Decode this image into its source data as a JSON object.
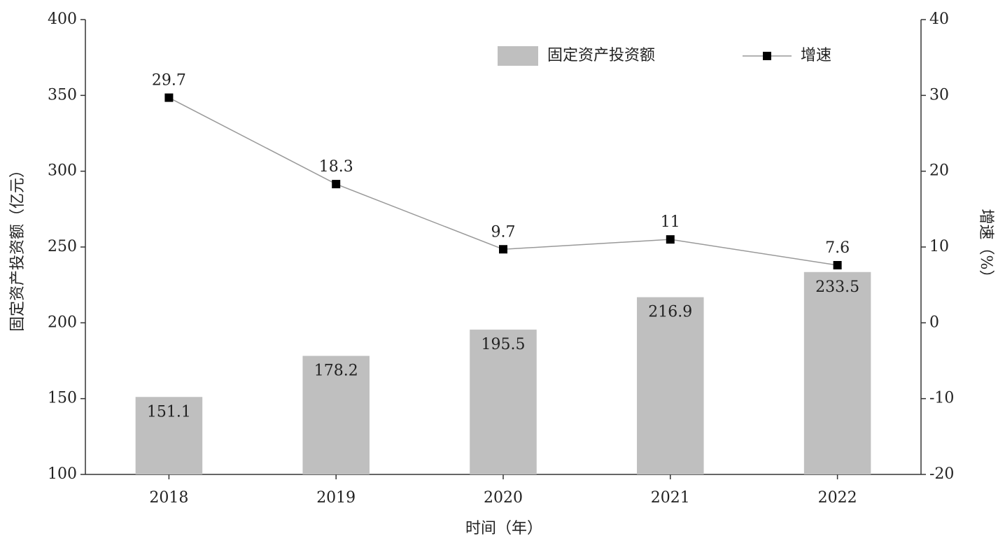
{
  "chart_data": {
    "type": "bar",
    "x_label": "时间（年）",
    "y_label": "固定资产投资额（亿元）",
    "y2_label": "增速（%）",
    "categories": [
      "2018",
      "2019",
      "2020",
      "2021",
      "2022"
    ],
    "series": [
      {
        "name": "固定资产投资额",
        "type": "bar",
        "color": "#bfbfbf",
        "values": [
          151.1,
          178.2,
          195.5,
          216.9,
          233.5
        ]
      },
      {
        "name": "增速",
        "type": "line",
        "axis": "y2",
        "color": "#000000",
        "values": [
          29.7,
          18.3,
          9.7,
          11,
          7.6
        ]
      }
    ],
    "ylim": [
      100,
      400
    ],
    "yticks": [
      100,
      150,
      200,
      250,
      300,
      350,
      400
    ],
    "y2lim": [
      -20,
      40
    ],
    "y2ticks": [
      -20,
      -10,
      0,
      10,
      20,
      30,
      40
    ],
    "grid": false,
    "legend": "upper right"
  }
}
